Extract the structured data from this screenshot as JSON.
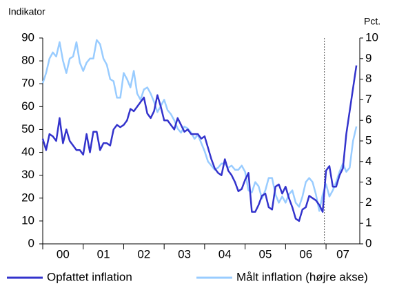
{
  "chart_data": {
    "type": "line",
    "y_label": "Indikator",
    "y2_label": "Pct.",
    "x": [
      0,
      1,
      2,
      3,
      4,
      5,
      6,
      7,
      8,
      9,
      10,
      11,
      12,
      13,
      14,
      15,
      16,
      17,
      18,
      19,
      20,
      21,
      22,
      23,
      24,
      25,
      26,
      27,
      28,
      29,
      30,
      31,
      32,
      33,
      34,
      35,
      36,
      37,
      38,
      39,
      40,
      41,
      42,
      43,
      44,
      45,
      46,
      47,
      48,
      49,
      50,
      51,
      52,
      53,
      54,
      55,
      56,
      57,
      58,
      59,
      60,
      61,
      62,
      63,
      64,
      65,
      66,
      67,
      68,
      69,
      70,
      71,
      72,
      73,
      74,
      75,
      76,
      77,
      78,
      79,
      80,
      81,
      82,
      83,
      84,
      85,
      86,
      87,
      88,
      89,
      90,
      91,
      92,
      93
    ],
    "xlim": [
      0,
      94
    ],
    "xticks": [
      0,
      12,
      24,
      36,
      48,
      60,
      72,
      84
    ],
    "xtick_labels": [
      {
        "value": 6,
        "label": "00"
      },
      {
        "value": 18,
        "label": "01"
      },
      {
        "value": 30,
        "label": "02"
      },
      {
        "value": 42,
        "label": "03"
      },
      {
        "value": 54,
        "label": "04"
      },
      {
        "value": 66,
        "label": "05"
      },
      {
        "value": 78,
        "label": "06"
      },
      {
        "value": 89,
        "label": "07"
      }
    ],
    "ylim": [
      0,
      90
    ],
    "yticks": [
      0,
      10,
      20,
      30,
      40,
      50,
      60,
      70,
      80,
      90
    ],
    "y2lim": [
      0,
      10
    ],
    "y2ticks": [
      0,
      1,
      2,
      3,
      4,
      5,
      6,
      7,
      8,
      9,
      10
    ],
    "divider_x": 83.5,
    "series": [
      {
        "name": "Opfattet inflation",
        "color": "#3333cc",
        "axis": "y",
        "values": [
          46,
          41,
          48,
          47,
          45,
          55,
          44,
          50,
          45,
          43,
          41,
          41,
          39,
          48,
          40,
          49,
          49,
          41,
          44,
          44,
          43,
          50,
          52,
          51,
          52,
          54,
          59,
          58,
          60,
          62,
          64,
          57,
          55,
          58,
          65,
          60,
          54,
          54,
          52,
          50,
          55,
          52,
          49,
          50,
          48,
          48,
          48,
          46,
          47,
          42,
          37,
          33,
          31,
          30,
          37,
          32,
          30,
          27,
          23,
          24,
          28,
          31,
          14,
          14,
          17,
          21,
          22,
          16,
          15,
          25,
          26,
          22,
          25,
          20,
          16,
          11,
          10,
          15,
          16,
          21,
          20,
          19,
          17,
          14,
          32,
          34,
          25,
          25,
          30,
          33,
          48,
          58,
          68,
          78
        ]
      },
      {
        "name": "Målt inflation (højre akse)",
        "color": "#99ccff",
        "axis": "y2",
        "values": [
          7.8,
          8.3,
          9.0,
          9.3,
          9.1,
          9.8,
          8.9,
          8.3,
          9.0,
          9.1,
          9.8,
          8.8,
          8.4,
          8.8,
          9.0,
          9.0,
          9.9,
          9.7,
          9.0,
          8.7,
          8.0,
          7.9,
          7.1,
          7.1,
          8.3,
          8.0,
          7.6,
          8.4,
          7.3,
          7.0,
          7.5,
          7.6,
          7.3,
          6.9,
          6.4,
          6.7,
          7.0,
          6.5,
          6.3,
          6.0,
          5.6,
          5.4,
          5.7,
          5.6,
          5.4,
          5.1,
          5.3,
          4.9,
          4.5,
          4.0,
          3.8,
          3.6,
          3.7,
          3.9,
          3.9,
          3.7,
          3.8,
          3.6,
          3.6,
          3.8,
          3.5,
          2.6,
          2.5,
          3.0,
          2.8,
          2.2,
          2.6,
          3.2,
          3.2,
          2.4,
          2.0,
          2.3,
          2.0,
          2.4,
          2.6,
          2.0,
          1.8,
          2.3,
          3.0,
          3.2,
          3.0,
          2.4,
          1.6,
          2.4,
          2.9,
          2.3,
          2.6,
          3.0,
          3.5,
          3.9,
          3.5,
          3.7,
          5.0,
          5.7
        ]
      }
    ]
  }
}
